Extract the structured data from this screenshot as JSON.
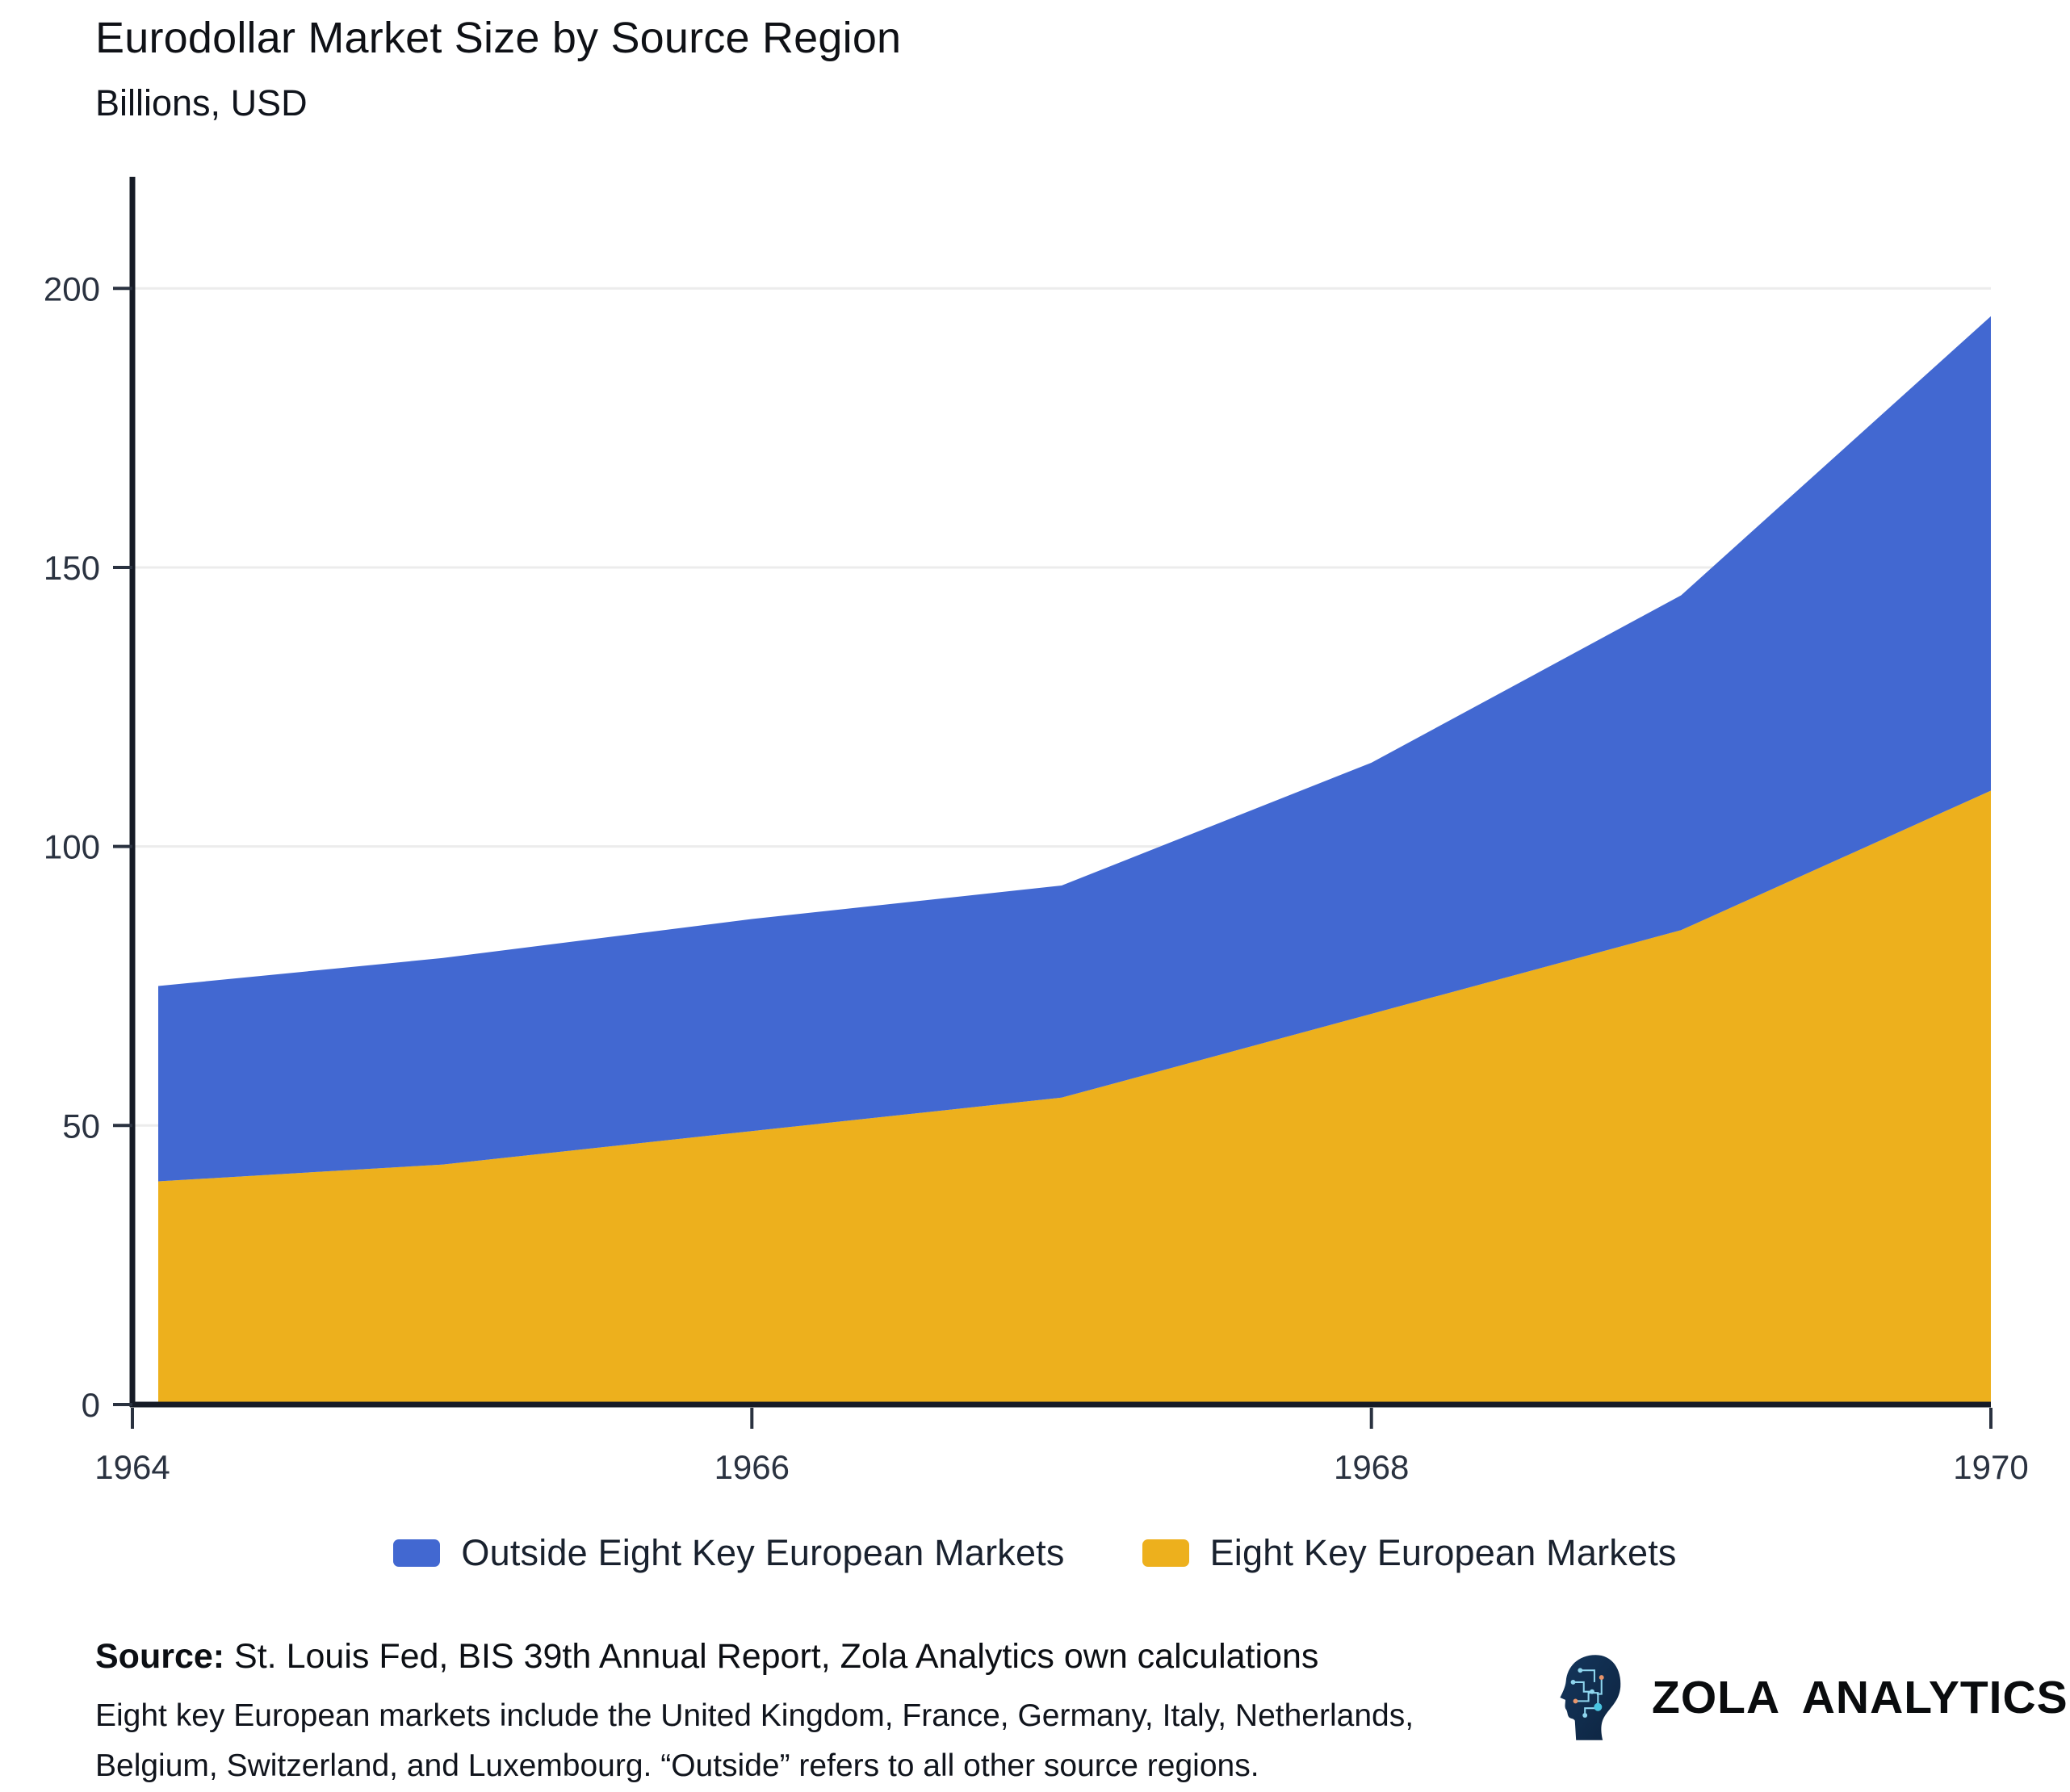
{
  "header": {
    "title": "Eurodollar Market Size by Source Region",
    "subtitle": "Billions, USD"
  },
  "chart_data": {
    "type": "area",
    "stacked": true,
    "title": "Eurodollar Market Size by Source Region",
    "subtitle": "Billions, USD",
    "x": [
      1964,
      1965,
      1966,
      1967,
      1968,
      1969,
      1970
    ],
    "series": [
      {
        "name": "Eight Key European Markets",
        "color": "#EDB01D",
        "values": [
          40,
          43,
          49,
          55,
          70,
          85,
          110
        ]
      },
      {
        "name": "Outside Eight Key European Markets",
        "color": "#4268D1",
        "values": [
          35,
          37,
          38,
          38,
          45,
          60,
          85
        ]
      }
    ],
    "stacked_totals": [
      75,
      80,
      87,
      93,
      115,
      145,
      195
    ],
    "xlabel": "",
    "ylabel": "Billions, USD",
    "ylim": [
      0,
      220
    ],
    "y_ticks": [
      "0",
      "50",
      "100",
      "150",
      "200"
    ],
    "y_tick_values": [
      0,
      50,
      100,
      150,
      200
    ],
    "x_ticks": [
      "1964",
      "1966",
      "1968",
      "1970"
    ],
    "x_tick_values": [
      1964,
      1966,
      1968,
      1970
    ],
    "grid": "horizontal-only",
    "legend_position": "bottom-center"
  },
  "legend": {
    "items": [
      {
        "label": "Outside Eight Key European Markets",
        "color": "#4268D1"
      },
      {
        "label": "Eight Key European Markets",
        "color": "#EDB01D"
      }
    ]
  },
  "footer": {
    "source_label": "Source:",
    "source_text": " St. Louis Fed, BIS 39th Annual Report, Zola Analytics own calculations",
    "note_line1": "Eight key European markets include the United Kingdom, France, Germany, Italy, Netherlands,",
    "note_line2": "Belgium, Switzerland, and Luxembourg. “Outside” refers to all other source regions.",
    "brand": "ZOLA ANALYTICS"
  },
  "colors": {
    "outside_series": "#4268D1",
    "eight_key_series": "#EDB01D",
    "axis": "#161b26",
    "gridline": "#ececec",
    "tick_text": "#2a3240"
  }
}
